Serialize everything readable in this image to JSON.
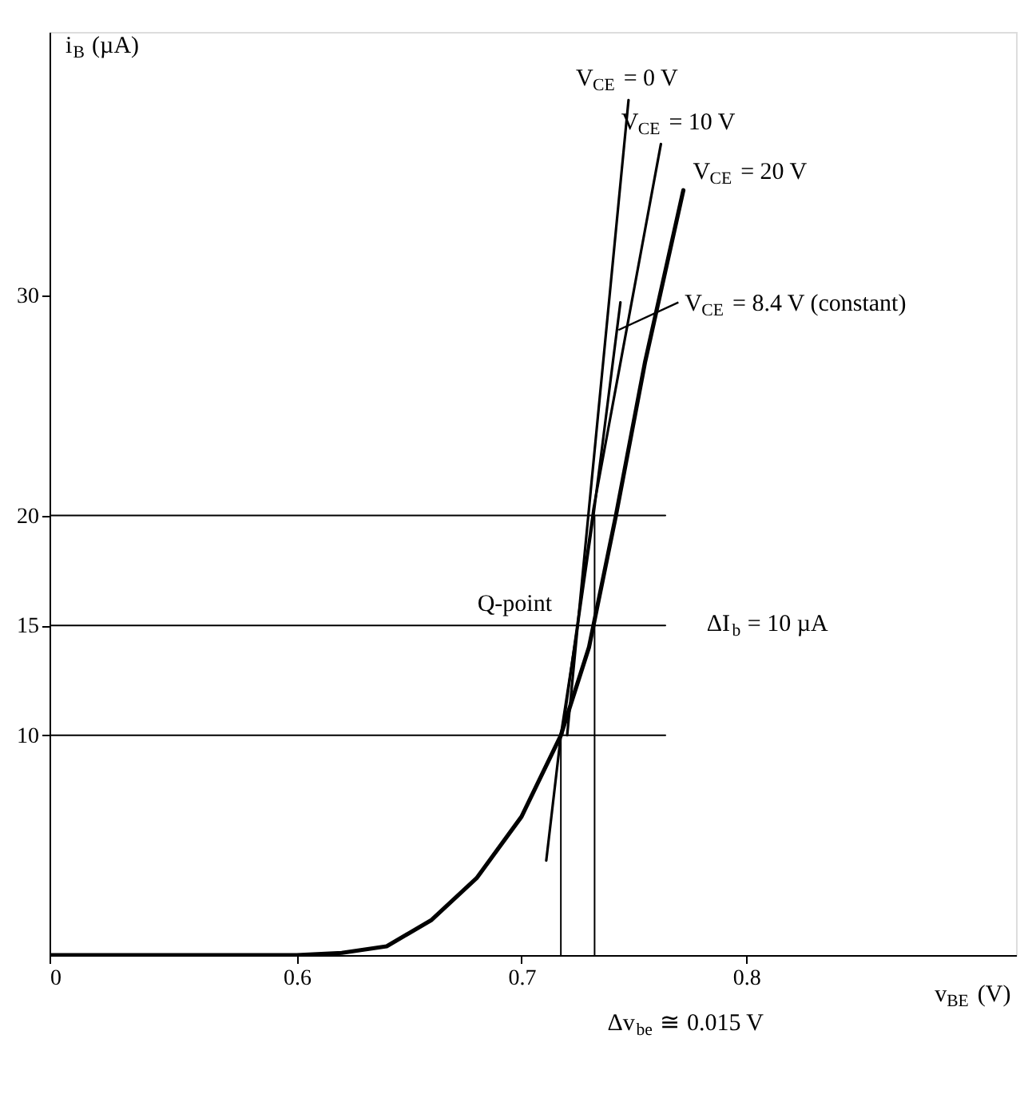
{
  "chart_data": {
    "type": "line",
    "xlabel": "v$_{BE}$ (V)",
    "ylabel": "i$_{B}$ (µA)",
    "xlim": [
      0.49,
      0.92
    ],
    "ylim": [
      0,
      42
    ],
    "xticks": [
      {
        "value": 0.49,
        "label": "0"
      },
      0.6,
      0.7,
      0.8
    ],
    "yticks": [
      10,
      15,
      20,
      30
    ],
    "grid": false,
    "marker": "none",
    "line_style": "solid",
    "series": [
      {
        "name": "V$_{CE}$ = 0 V",
        "color": "#000000",
        "x": [
          0.7203,
          0.73,
          0.7476
        ],
        "values": [
          10,
          20.3,
          38.9
        ]
      },
      {
        "name": "V$_{CE}$ = 10 V",
        "color": "#000000",
        "x": [
          0.718,
          0.732,
          0.762
        ],
        "values": [
          10,
          20.3,
          36.9
        ]
      },
      {
        "name": "V$_{CE}$ = 20 V",
        "color": "#000000",
        "x": [
          0.49,
          0.6,
          0.62,
          0.64,
          0.66,
          0.68,
          0.7,
          0.7175,
          0.73,
          0.742,
          0.755,
          0.772
        ],
        "values": [
          0,
          0,
          0.1,
          0.4,
          1.6,
          3.5,
          6.3,
          10,
          14,
          20,
          27,
          34.8
        ]
      },
      {
        "name": "V$_{CE}$ = 8.4 V (constant)",
        "color": "#000000",
        "x": [
          0.711,
          0.7175,
          0.725,
          0.732,
          0.744
        ],
        "values": [
          4.3,
          10,
          15,
          20,
          29.7
        ]
      },
      {
        "color": "#000000",
        "x": [
          0.49,
          0.764
        ],
        "values": [
          10,
          10
        ]
      },
      {
        "color": "#000000",
        "x": [
          0.49,
          0.764
        ],
        "values": [
          15,
          15
        ]
      },
      {
        "color": "#000000",
        "x": [
          0.49,
          0.764
        ],
        "values": [
          20,
          20
        ]
      },
      {
        "color": "#000000",
        "x": [
          0.7175,
          0.7175
        ],
        "values": [
          0,
          10
        ]
      },
      {
        "color": "#000000",
        "x": [
          0.7325,
          0.7325
        ],
        "values": [
          0,
          20
        ]
      }
    ],
    "annotations": [
      {
        "text": "Q-point",
        "x": 0.725,
        "y": 15
      },
      "ΔI$_{b}$ = 10 µA",
      {
        "text": "Δv$_{be}$ ≅ 0.015 V",
        "x": 0.7325,
        "y": 0
      }
    ]
  }
}
